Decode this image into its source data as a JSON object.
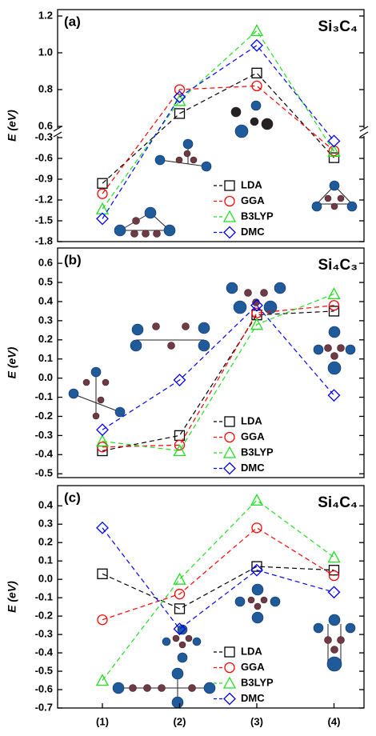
{
  "chart_data": [
    {
      "type": "line",
      "label": "(a)",
      "title": "Si₃C₄",
      "ylabel": "E (eV)",
      "legend": "lower right",
      "segments": [
        {
          "ylim": [
            -1.8,
            -0.3
          ],
          "yticks": [
            -1.8,
            -1.5,
            -1.2,
            -0.9,
            -0.6,
            -0.3
          ]
        },
        {
          "ylim": [
            0.6,
            1.2
          ],
          "yticks": [
            0.6,
            0.8,
            {
              "value": 1.0,
              "label": "1.0"
            },
            1.2
          ]
        }
      ],
      "series": [
        {
          "name": "LDA",
          "color": "#000000",
          "marker": "square",
          "values": [
            -0.96,
            0.67,
            0.89,
            -0.59
          ]
        },
        {
          "name": "GGA",
          "color": "#ff0000",
          "marker": "circle",
          "values": [
            -1.11,
            0.8,
            0.82,
            -0.49
          ]
        },
        {
          "name": "B3LYP",
          "color": "#22dd22",
          "marker": "triangle",
          "values": [
            -1.33,
            0.74,
            1.12,
            -0.5
          ]
        },
        {
          "name": "DMC",
          "color": "#0000ff",
          "marker": "diamond",
          "values": [
            -1.47,
            0.76,
            1.04,
            -0.35
          ]
        }
      ]
    },
    {
      "type": "line",
      "label": "(b)",
      "title": "Si₄C₃",
      "ylabel": "E (eV)",
      "legend": "lower right",
      "ylim": [
        -0.52,
        0.68
      ],
      "yticks": [
        -0.5,
        -0.4,
        -0.3,
        -0.2,
        -0.1,
        {
          "value": 0,
          "label": "0.0"
        },
        0.1,
        0.2,
        0.3,
        0.4,
        0.5,
        0.6
      ],
      "series": [
        {
          "name": "LDA",
          "color": "#000000",
          "marker": "square",
          "values": [
            -0.38,
            -0.3,
            0.33,
            0.35
          ]
        },
        {
          "name": "GGA",
          "color": "#ff0000",
          "marker": "circle",
          "values": [
            -0.36,
            -0.35,
            0.34,
            0.38
          ]
        },
        {
          "name": "B3LYP",
          "color": "#22dd22",
          "marker": "triangle",
          "values": [
            -0.33,
            -0.38,
            0.28,
            0.44
          ]
        },
        {
          "name": "DMC",
          "color": "#0000ff",
          "marker": "diamond",
          "values": [
            -0.27,
            -0.01,
            0.38,
            -0.09
          ]
        }
      ]
    },
    {
      "type": "line",
      "label": "(c)",
      "title": "Si₄C₄",
      "ylabel": "E (eV)",
      "legend": "lower right",
      "categories": [
        "(1)",
        "(2)",
        "(3)",
        "(4)"
      ],
      "ylim": [
        -0.7,
        0.51
      ],
      "yticks": [
        -0.7,
        -0.6,
        -0.5,
        -0.4,
        -0.3,
        -0.2,
        -0.1,
        {
          "value": 0,
          "label": "0.0"
        },
        0.1,
        0.2,
        0.3,
        0.4
      ],
      "series": [
        {
          "name": "LDA",
          "color": "#000000",
          "marker": "square",
          "values": [
            0.03,
            -0.16,
            0.07,
            0.05
          ]
        },
        {
          "name": "GGA",
          "color": "#ff0000",
          "marker": "circle",
          "values": [
            -0.22,
            -0.08,
            0.28,
            0.02
          ]
        },
        {
          "name": "B3LYP",
          "color": "#22dd22",
          "marker": "triangle",
          "values": [
            -0.55,
            0.0,
            0.43,
            0.12
          ]
        },
        {
          "name": "DMC",
          "color": "#0000ff",
          "marker": "diamond",
          "values": [
            0.28,
            -0.27,
            0.05,
            -0.07
          ]
        }
      ]
    }
  ]
}
